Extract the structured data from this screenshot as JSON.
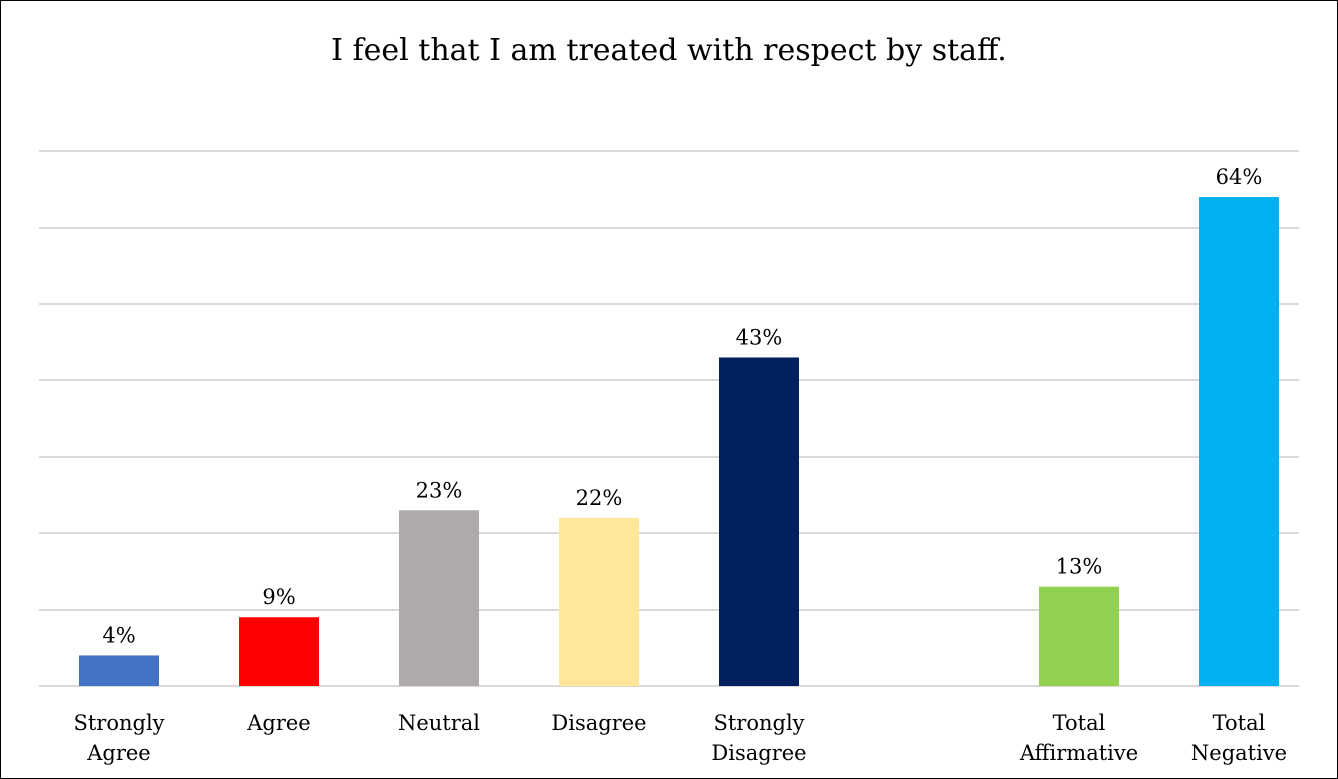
{
  "chart_data": {
    "type": "bar",
    "title": "I feel that I am treated with respect by staff.",
    "xlabel": "",
    "ylabel": "",
    "ylim": [
      0,
      70
    ],
    "grid": true,
    "legend": "none",
    "unit": "%",
    "categories": [
      [
        "Strongly",
        "Agree"
      ],
      [
        "Agree"
      ],
      [
        "Neutral"
      ],
      [
        "Disagree"
      ],
      [
        "Strongly",
        "Disagree"
      ],
      [
        "Total",
        "Affirmative"
      ],
      [
        "Total",
        "Negative"
      ]
    ],
    "values": [
      4,
      9,
      23,
      22,
      43,
      13,
      64
    ],
    "data_labels": [
      "4%",
      "9%",
      "23%",
      "22%",
      "43%",
      "13%",
      "64%"
    ],
    "colors": [
      "#4472C4",
      "#FF0000",
      "#AEAAAA",
      "#FFE699",
      "#002060",
      "#92D050",
      "#00B0F0"
    ]
  }
}
